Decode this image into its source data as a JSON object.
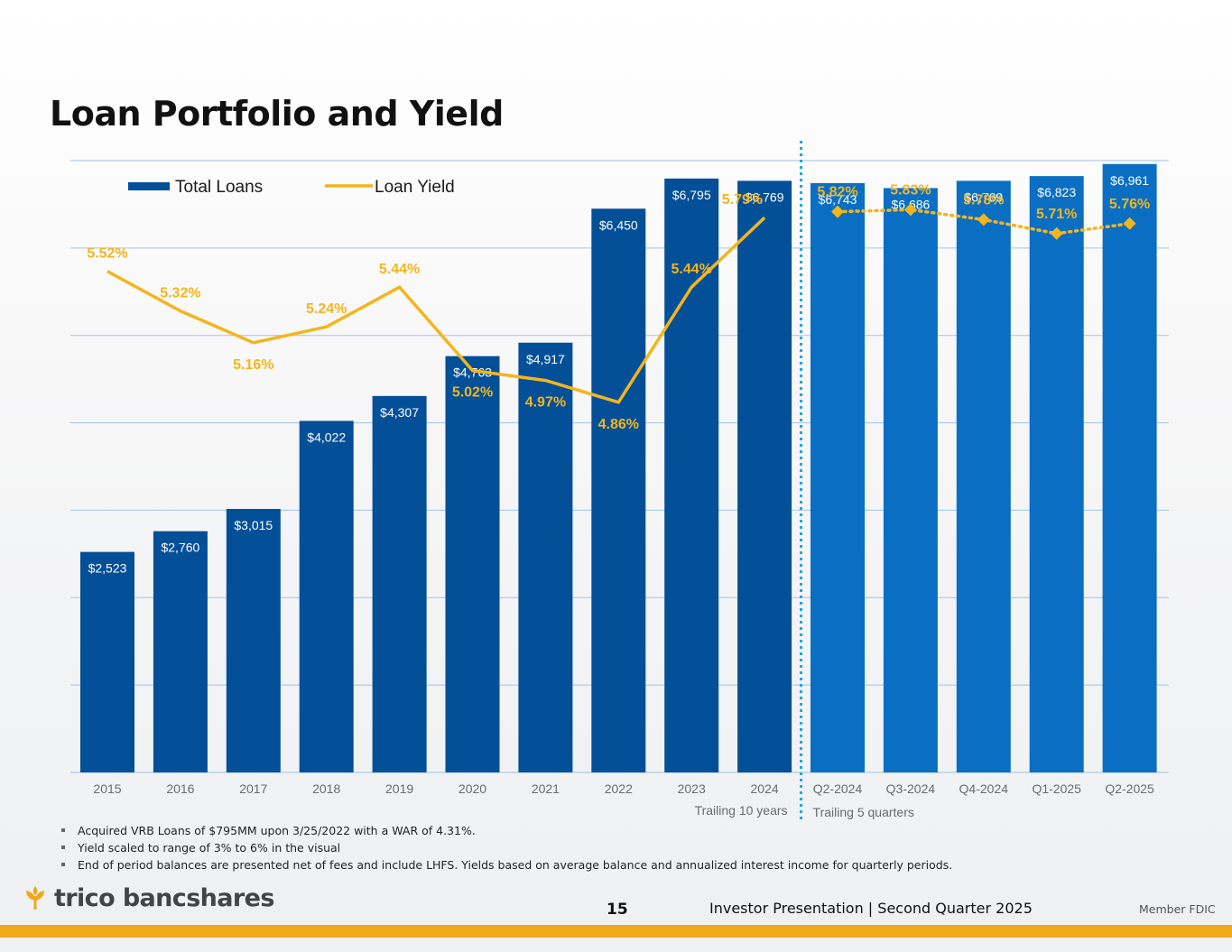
{
  "title": "Loan Portfolio and Yield",
  "colors": {
    "annual_bar": "#034f98",
    "quarterly_bar": "#0a6fc3",
    "yield": "#f4b51c",
    "gridline": "#9fc3e7",
    "divider": "#1aa6e6",
    "bar_label": "#ffffff",
    "axis_text": "#6b6b6b",
    "brand_orange": "#f0a81c"
  },
  "chart_data": {
    "type": "bar",
    "title": "",
    "categories": [
      "2015",
      "2016",
      "2017",
      "2018",
      "2019",
      "2020",
      "2021",
      "2022",
      "2023",
      "2024",
      "Q2-2024",
      "Q3-2024",
      "Q4-2024",
      "Q1-2025",
      "Q2-2025"
    ],
    "series": [
      {
        "name": "Total Loans",
        "type": "bar",
        "values": [
          2523,
          2760,
          3015,
          4022,
          4307,
          4763,
          4917,
          6450,
          6795,
          6769,
          6743,
          6686,
          6769,
          6823,
          6961
        ],
        "labels": [
          "$2,523",
          "$2,760",
          "$3,015",
          "$4,022",
          "$4,307",
          "$4,763",
          "$4,917",
          "$6,450",
          "$6,795",
          "$6,769",
          "$6,743",
          "$6,686",
          "$6,769",
          "$6,823",
          "$6,961"
        ]
      },
      {
        "name": "Loan Yield",
        "type": "line",
        "values": [
          5.52,
          5.32,
          5.16,
          5.24,
          5.44,
          5.02,
          4.97,
          4.86,
          5.44,
          5.79,
          5.82,
          5.83,
          5.78,
          5.71,
          5.76
        ],
        "labels": [
          "5.52%",
          "5.32%",
          "5.16%",
          "5.24%",
          "5.44%",
          "5.02%",
          "4.97%",
          "4.86%",
          "5.44%",
          "5.79%",
          "5.82%",
          "5.83%",
          "5.78%",
          "5.71%",
          "5.76%"
        ]
      }
    ],
    "yield_axis_range": [
      3,
      6
    ],
    "bar_axis_range": [
      0,
      7000
    ],
    "grid": true,
    "legend": "top-left",
    "annual_count": 10,
    "group_labels": [
      "Trailing 10 years",
      "Trailing 5 quarters"
    ]
  },
  "footnotes": [
    "Acquired VRB Loans of $795MM upon 3/25/2022 with a WAR of 4.31%.",
    "Yield scaled to range of 3% to 6% in the visual",
    "End of period balances are presented net of fees and include LHFS. Yields based on average balance and annualized interest income for quarterly periods."
  ],
  "footer": {
    "logo_text": "trico bancshares",
    "page_number": "15",
    "text": "Investor Presentation  |  Second Quarter 2025",
    "member": "Member FDIC"
  }
}
